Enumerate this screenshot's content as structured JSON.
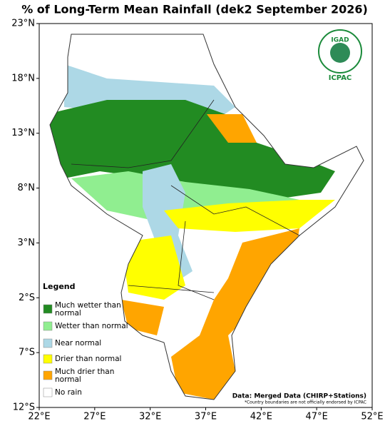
{
  "header": {
    "title": "% of Long-Term Mean Rainfall (dek2 September 2026)"
  },
  "axes": {
    "x_labels": [
      "22°E",
      "27°E",
      "32°E",
      "37°E",
      "42°E",
      "47°E",
      "52°E"
    ],
    "y_labels": [
      "23°N",
      "18°N",
      "13°N",
      "8°N",
      "3°N",
      "2°S",
      "7°S",
      "12°S"
    ]
  },
  "logo": {
    "top": "IGAD",
    "bottom": "ICPAC"
  },
  "legend": {
    "title": "Legend",
    "items": [
      {
        "label": "Much wetter than normal",
        "color": "#228b22"
      },
      {
        "label": "Wetter than normal",
        "color": "#90ee90"
      },
      {
        "label": "Near normal",
        "color": "#add8e6"
      },
      {
        "label": "Drier than normal",
        "color": "#ffff00"
      },
      {
        "label": "Much drier than normal",
        "color": "#ffa500"
      },
      {
        "label": "No rain",
        "color": "#ffffff"
      }
    ]
  },
  "notes": {
    "source": "Data: Merged Data (CHIRP+Stations)",
    "disclaimer": "*Country boundaries are not officially endorsed by ICPAC"
  }
}
